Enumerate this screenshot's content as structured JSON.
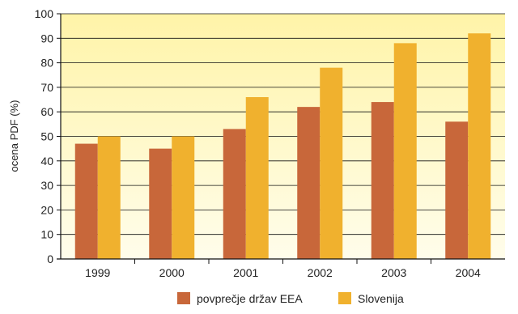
{
  "chart_data": {
    "type": "bar",
    "title": "",
    "xlabel": "",
    "ylabel": "ocena PDF  (%)",
    "categories": [
      "1999",
      "2000",
      "2001",
      "2002",
      "2003",
      "2004"
    ],
    "series": [
      {
        "name": "povprečje držav EEA",
        "color": "#C8673A",
        "values": [
          47,
          45,
          53,
          62,
          64,
          56
        ]
      },
      {
        "name": "Slovenija",
        "color": "#F0B12E",
        "values": [
          50,
          50,
          66,
          78,
          88,
          92
        ]
      }
    ],
    "ylim": [
      0,
      100
    ],
    "yticks": [
      0,
      10,
      20,
      30,
      40,
      50,
      60,
      70,
      80,
      90,
      100
    ],
    "grid": true,
    "legend": "bottom",
    "background_gradient": [
      "#FFF4A8",
      "#FFFDEB"
    ]
  }
}
